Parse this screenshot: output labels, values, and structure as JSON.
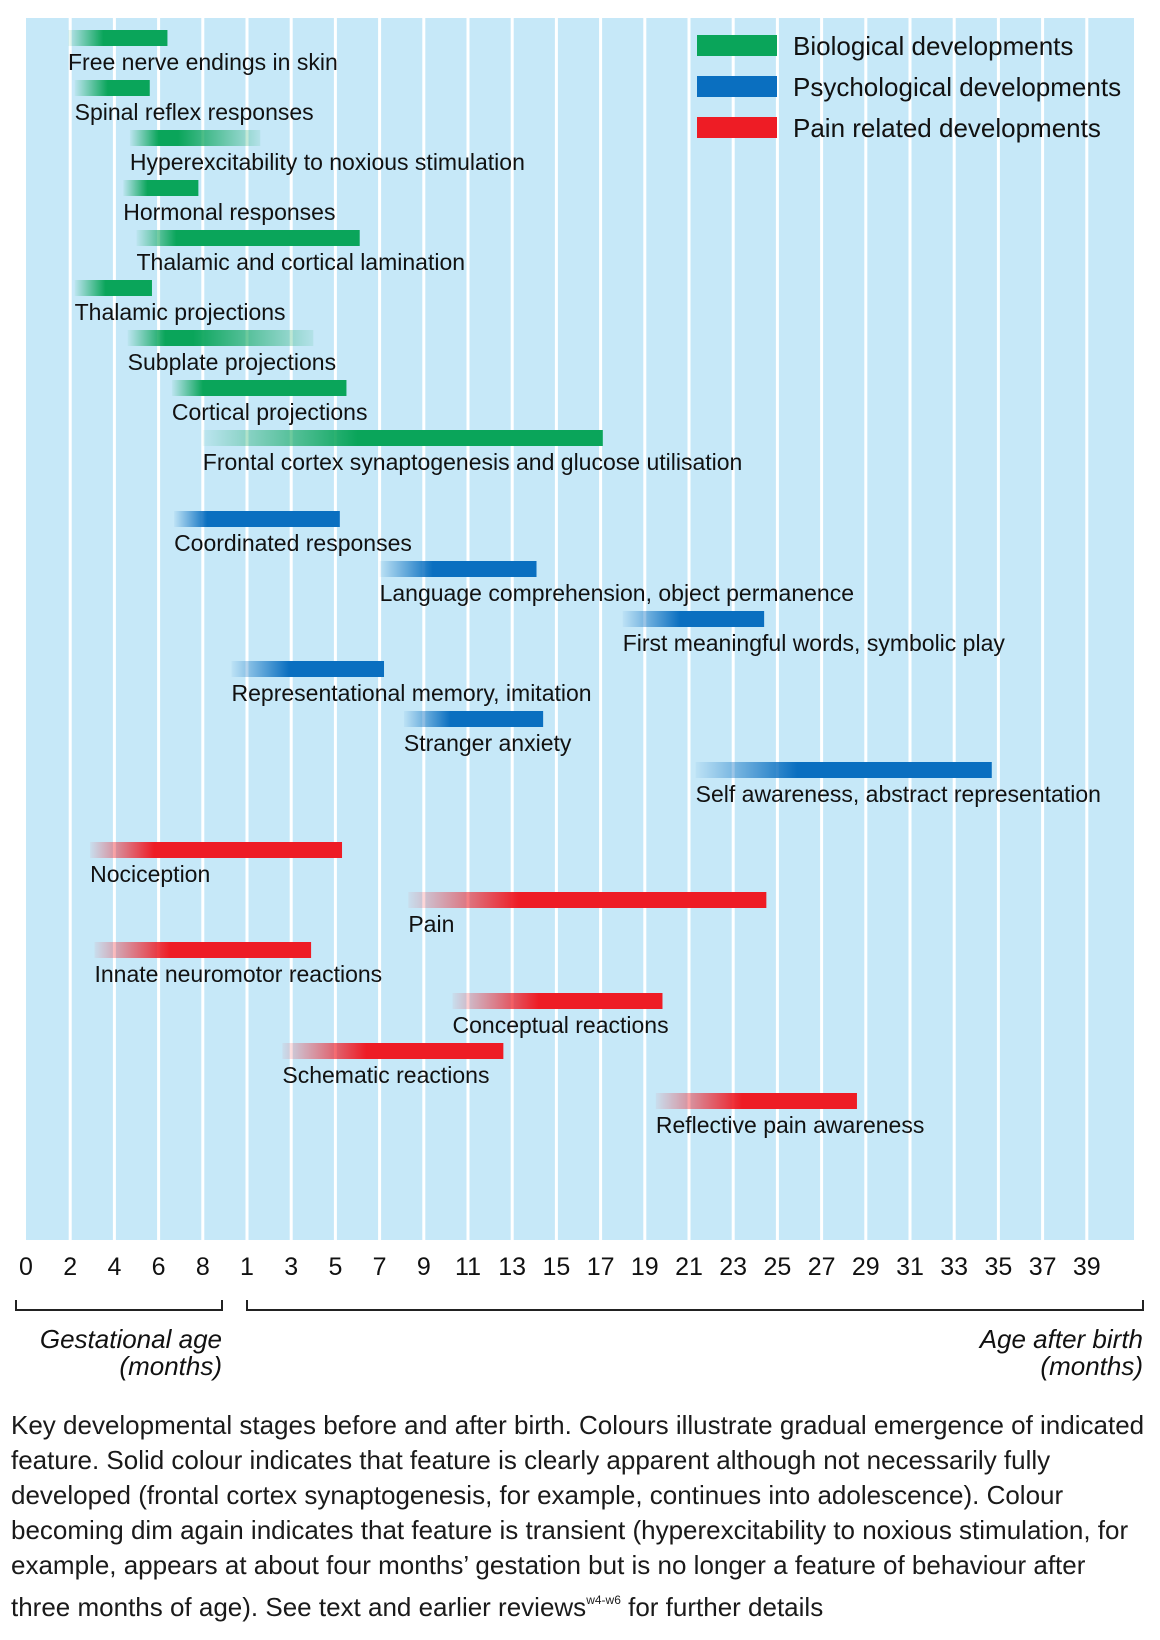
{
  "chart_data": {
    "type": "gantt",
    "legend_position": "top-right",
    "legend": [
      {
        "key": "bio",
        "label": "Biological developments",
        "color": "#0aa55a"
      },
      {
        "key": "psy",
        "label": "Psychological developments",
        "color": "#0a6fc0"
      },
      {
        "key": "pain",
        "label": "Pain related developments",
        "color": "#ee1c25"
      }
    ],
    "x_ticks": [
      "0",
      "2",
      "4",
      "6",
      "8",
      "1",
      "3",
      "5",
      "7",
      "9",
      "11",
      "13",
      "15",
      "17",
      "19",
      "21",
      "23",
      "25",
      "27",
      "29",
      "31",
      "33",
      "35",
      "37",
      "39"
    ],
    "axis_groups": [
      {
        "label_line1": "Gestational age",
        "label_line2": "(months)",
        "from_tick": 0,
        "to_tick": 4
      },
      {
        "label_line1": "Age after birth",
        "label_line2": "(months)",
        "from_tick": 5,
        "to_tick": 24
      }
    ],
    "bars": [
      {
        "label": "Free nerve endings in skin",
        "category": "bio",
        "fade_start": 1.9,
        "solid_start": 3.5,
        "end": 6.4
      },
      {
        "label": "Spinal reflex responses",
        "category": "bio",
        "fade_start": 2.2,
        "solid_start": 3.7,
        "end": 5.6
      },
      {
        "label": "Hyperexcitability to noxious stimulation",
        "category": "bio",
        "fade_start": 4.7,
        "solid_start": 6.0,
        "end": 1.6,
        "fade_end": true
      },
      {
        "label": "Hormonal responses",
        "category": "bio",
        "fade_start": 4.4,
        "solid_start": 5.5,
        "end": 7.8
      },
      {
        "label": "Thalamic and cortical lamination",
        "category": "bio",
        "fade_start": 5.0,
        "solid_start": 6.8,
        "end": 6.1
      },
      {
        "label": "Thalamic projections",
        "category": "bio",
        "fade_start": 2.2,
        "solid_start": 3.6,
        "end": 5.7
      },
      {
        "label": "Subplate projections",
        "category": "bio",
        "fade_start": 4.6,
        "solid_start": 6.3,
        "end": 4.0,
        "fade_end": true
      },
      {
        "label": "Cortical projections",
        "category": "bio",
        "fade_start": 6.6,
        "solid_start": 8.0,
        "end": 5.5
      },
      {
        "label": "Frontal cortex synaptogenesis and glucose utilisation",
        "category": "bio",
        "fade_start": 8.0,
        "solid_start": 6.0,
        "end": 17.1
      },
      {
        "label": "Coordinated responses",
        "category": "psy",
        "fade_start": 6.7,
        "solid_start": 8.2,
        "end": 5.2
      },
      {
        "label": "Language comprehension, object permanence",
        "category": "psy",
        "fade_start": 7.0,
        "solid_start": 9.4,
        "end": 14.1
      },
      {
        "label": "First meaningful words, symbolic play",
        "category": "psy",
        "fade_start": 18.0,
        "solid_start": 20.6,
        "end": 24.4
      },
      {
        "label": "Representational memory, imitation",
        "category": "psy",
        "fade_start": 0.3,
        "solid_start": 2.9,
        "end": 7.2
      },
      {
        "label": "Stranger anxiety",
        "category": "psy",
        "fade_start": 8.1,
        "solid_start": 10.2,
        "end": 14.4
      },
      {
        "label": "Self awareness, abstract representation",
        "category": "psy",
        "fade_start": 21.3,
        "solid_start": 25.9,
        "end": 34.7
      },
      {
        "label": "Nociception",
        "category": "pain",
        "fade_start": 2.9,
        "solid_start": 5.8,
        "end": 5.3
      },
      {
        "label": "Pain",
        "category": "pain",
        "fade_start": 8.3,
        "solid_start": 13.3,
        "end": 24.5
      },
      {
        "label": "Innate neuromotor reactions",
        "category": "pain",
        "fade_start": 3.1,
        "solid_start": 6.5,
        "end": 3.9
      },
      {
        "label": "Conceptual reactions",
        "category": "pain",
        "fade_start": 10.3,
        "solid_start": 14.2,
        "end": 19.8
      },
      {
        "label": "Schematic reactions",
        "category": "pain",
        "fade_start": 2.6,
        "solid_start": 6.4,
        "end": 12.6
      },
      {
        "label": "Reflective pain awareness",
        "category": "pain",
        "fade_start": 19.5,
        "solid_start": 23.4,
        "end": 28.6
      }
    ]
  },
  "caption": {
    "text": "Key developmental stages before and after birth. Colours illustrate gradual emergence of indicated feature. Solid colour indicates that feature is clearly apparent although not necessarily fully developed (frontal cortex synaptogenesis, for example, continues into adolescence). Colour becoming dim again indicates that feature is transient (hyperexcitability to noxious stimulation, for example, appears at about four months’ gestation but is no longer a feature of behaviour after three months of age). See text and earlier reviews",
    "superscript": "w4-w6",
    "tail": " for further details"
  }
}
